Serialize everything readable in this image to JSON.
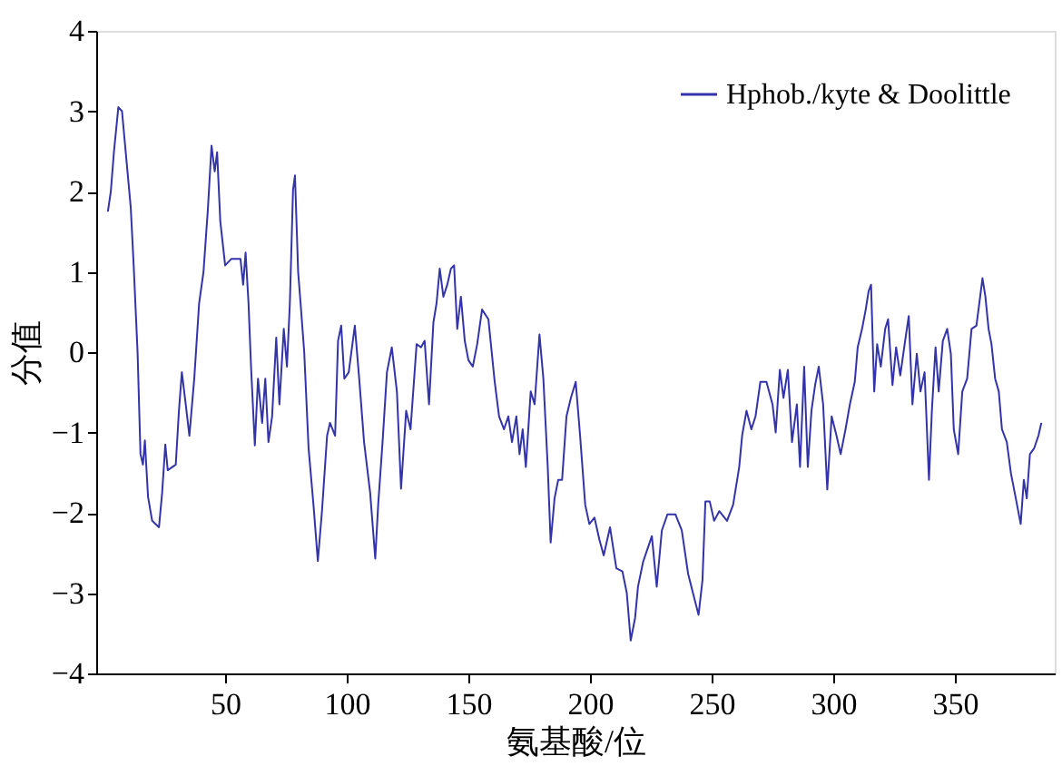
{
  "chart_data": {
    "type": "line",
    "xlabel": "氨基酸/位",
    "ylabel": "分值",
    "xlim": [
      -3,
      391
    ],
    "ylim": [
      -4,
      4
    ],
    "xticks": [
      50,
      100,
      150,
      200,
      250,
      300,
      350
    ],
    "yticks": [
      -4,
      -3,
      -2,
      -1,
      0,
      1,
      2,
      3,
      4
    ],
    "grid": false,
    "legend": "top right",
    "marker": "none",
    "line_style": "solid",
    "series": [
      {
        "name": "Hphob./kyte & Doolittle",
        "color": "#3333aa",
        "x": [
          1.8,
          3,
          4.3,
          6.1,
          7.6,
          9.4,
          11.2,
          12.4,
          14,
          15.2,
          16.2,
          17,
          18.3,
          20,
          22.8,
          24.1,
          25.4,
          26.4,
          29.7,
          31,
          32.2,
          33.8,
          35.3,
          37.3,
          39.3,
          41.1,
          42.9,
          44.4,
          45.7,
          46.7,
          48,
          50,
          52.5,
          56.3,
          57.4,
          58.4,
          59.6,
          60.7,
          62.2,
          63.5,
          65.2,
          66.5,
          67.8,
          69.3,
          71,
          72.3,
          74.1,
          75.4,
          76.6,
          77.9,
          78.7,
          80,
          81,
          82.5,
          84.3,
          86.3,
          88.1,
          89.8,
          91.9,
          93.1,
          95.2,
          96.4,
          97.7,
          99,
          100.8,
          103.3,
          105.1,
          107.1,
          109.6,
          111.7,
          112.9,
          114.7,
          116.5,
          118.5,
          120.6,
          122.3,
          124.4,
          126.2,
          128.7,
          130.5,
          132,
          133.8,
          135.6,
          136.9,
          138.2,
          139.7,
          141.3,
          142.8,
          144.1,
          145.4,
          146.9,
          148.5,
          150,
          151.8,
          153.6,
          155.6,
          158.2,
          160.8,
          162.6,
          164.6,
          166.4,
          167.9,
          169.7,
          171,
          172.3,
          173.6,
          175.6,
          177.2,
          179.2,
          180.8,
          182.6,
          183.8,
          185.4,
          186.9,
          188.5,
          190.3,
          192.1,
          194.1,
          195.9,
          198,
          199.7,
          201.8,
          203.8,
          205.6,
          208.2,
          210.8,
          213.3,
          215.1,
          216.7,
          218.5,
          219.7,
          221.8,
          223.6,
          225.4,
          227.4,
          229.5,
          231.8,
          235.1,
          237.7,
          240.3,
          242.3,
          244.6,
          246.2,
          247.4,
          249.2,
          251,
          253.1,
          256.3,
          258.8,
          261.3,
          262.5,
          264.3,
          266.3,
          268,
          270,
          272.5,
          275,
          276.3,
          278,
          279.5,
          281.3,
          283,
          285,
          286.3,
          288,
          289.5,
          291,
          292.5,
          294,
          295.8,
          297.5,
          299.3,
          301.3,
          303,
          305,
          306.8,
          308.8,
          310,
          311.8,
          313.3,
          314.5,
          315.5,
          316.8,
          318,
          319.5,
          321.3,
          322.5,
          324.3,
          325.8,
          327.5,
          329.5,
          331,
          332.5,
          334.3,
          335.8,
          337.5,
          339.3,
          340.5,
          342,
          343.3,
          345,
          346.8,
          348.3,
          349.5,
          351.3,
          353,
          355,
          356.8,
          358.8,
          360,
          361.3,
          362.5,
          363.8,
          365,
          366.5,
          368,
          369.3,
          371.3,
          373,
          375,
          377,
          378.3,
          379.5,
          380.8,
          382.5,
          384.3,
          385.5
        ],
        "values": [
          1.75,
          2.0,
          2.5,
          3.05,
          3.0,
          2.4,
          1.8,
          1.08,
          0,
          -1.27,
          -1.4,
          -1.1,
          -1.8,
          -2.1,
          -2.18,
          -1.75,
          -1.15,
          -1.47,
          -1.4,
          -0.73,
          -0.25,
          -0.65,
          -1.04,
          -0.33,
          0.61,
          1.0,
          1.78,
          2.57,
          2.25,
          2.49,
          1.63,
          1.08,
          1.16,
          1.16,
          0.84,
          1.24,
          0.61,
          -0.22,
          -1.16,
          -0.33,
          -0.88,
          -0.33,
          -1.12,
          -0.8,
          0.18,
          -0.65,
          0.29,
          -0.18,
          0.61,
          2.02,
          2.2,
          1.0,
          0.61,
          0,
          -1.2,
          -1.9,
          -2.6,
          -1.98,
          -1.04,
          -0.88,
          -1.04,
          0.14,
          0.33,
          -0.33,
          -0.25,
          0.33,
          -0.33,
          -1.12,
          -1.75,
          -2.57,
          -1.9,
          -1.12,
          -0.25,
          0.06,
          -0.49,
          -1.7,
          -0.73,
          -0.96,
          0.1,
          0.06,
          0.14,
          -0.65,
          0.37,
          0.61,
          1.04,
          0.69,
          0.84,
          1.04,
          1.08,
          0.29,
          0.69,
          0.14,
          -0.1,
          -0.18,
          0.1,
          0.53,
          0.41,
          -0.37,
          -0.8,
          -0.96,
          -0.8,
          -1.12,
          -0.8,
          -1.27,
          -0.96,
          -1.43,
          -0.49,
          -0.65,
          0.22,
          -0.33,
          -1.43,
          -2.37,
          -1.82,
          -1.59,
          -1.59,
          -0.8,
          -0.57,
          -0.37,
          -1.04,
          -1.9,
          -2.14,
          -2.06,
          -2.33,
          -2.53,
          -2.18,
          -2.69,
          -2.73,
          -3.0,
          -3.59,
          -3.31,
          -2.92,
          -2.61,
          -2.45,
          -2.29,
          -2.92,
          -2.22,
          -2.02,
          -2.02,
          -2.22,
          -2.76,
          -3.0,
          -3.27,
          -2.84,
          -1.86,
          -1.86,
          -2.1,
          -1.98,
          -2.1,
          -1.9,
          -1.43,
          -1.04,
          -0.73,
          -0.96,
          -0.8,
          -0.37,
          -0.37,
          -0.65,
          -1.0,
          -0.22,
          -0.57,
          -0.22,
          -1.12,
          -0.65,
          -1.43,
          -0.18,
          -1.43,
          -0.73,
          -0.41,
          -0.18,
          -0.65,
          -1.71,
          -0.8,
          -1.04,
          -1.27,
          -0.96,
          -0.65,
          -0.37,
          0.06,
          0.29,
          0.53,
          0.76,
          0.84,
          -0.49,
          0.1,
          -0.18,
          0.29,
          0.41,
          -0.41,
          0.06,
          -0.29,
          0.14,
          0.45,
          -0.65,
          -0.02,
          -0.49,
          -0.25,
          -1.59,
          -0.73,
          0.06,
          -0.49,
          0.14,
          0.29,
          -0.02,
          -0.96,
          -1.27,
          -0.49,
          -0.33,
          0.29,
          0.33,
          0.61,
          0.92,
          0.69,
          0.29,
          0.1,
          -0.33,
          -0.49,
          -0.96,
          -1.12,
          -1.51,
          -1.82,
          -2.14,
          -1.59,
          -1.82,
          -1.27,
          -1.2,
          -1.04,
          -0.88
        ]
      }
    ]
  }
}
